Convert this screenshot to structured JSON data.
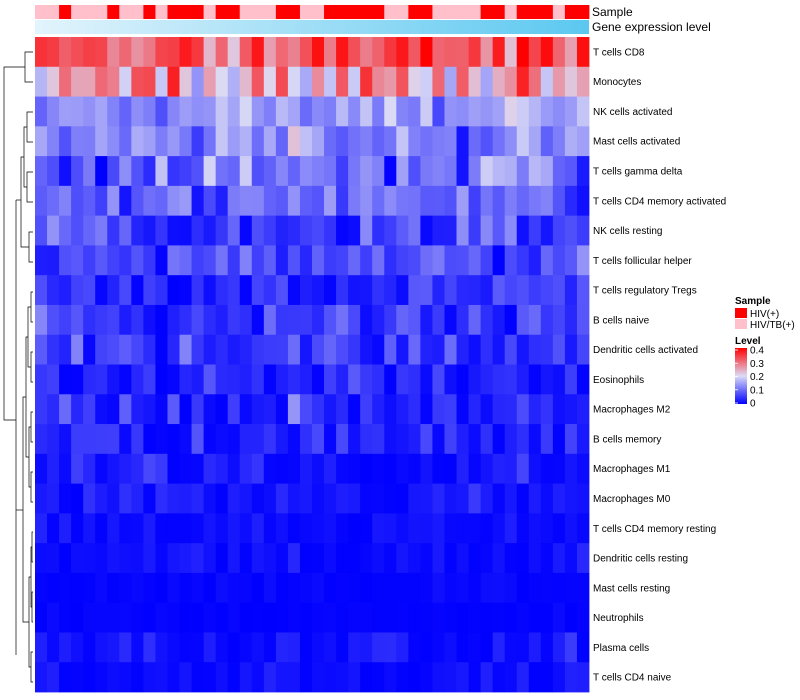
{
  "chart_data": {
    "type": "heatmap",
    "title": "",
    "annotation_rows": [
      {
        "name": "Sample",
        "label": "Sample"
      },
      {
        "name": "Gene expression level",
        "label": "Gene expression level"
      }
    ],
    "rows": [
      "T cells CD8",
      "Monocytes",
      "NK cells activated",
      "Mast cells activated",
      "T cells gamma delta",
      "T cells CD4 memory activated",
      "NK cells resting",
      "T cells follicular helper",
      "T cells regulatory  Tregs",
      "B cells naive",
      "Dendritic cells activated",
      "Eosinophils",
      "Macrophages M2",
      "B cells memory",
      "Macrophages M1",
      "Macrophages M0",
      "T cells CD4 memory resting",
      "Dendritic cells resting",
      "Mast cells resting",
      "Neutrophils",
      "Plasma cells",
      "T cells CD4 naive"
    ],
    "n_columns": 46,
    "sample_groups": [
      1,
      1,
      0,
      1,
      1,
      1,
      0,
      1,
      1,
      0,
      1,
      0,
      0,
      0,
      1,
      0,
      0,
      1,
      1,
      1,
      0,
      0,
      1,
      1,
      0,
      0,
      0,
      0,
      0,
      1,
      1,
      0,
      0,
      1,
      1,
      1,
      1,
      0,
      0,
      1,
      0,
      0,
      0,
      1,
      0,
      0
    ],
    "value_range": [
      0,
      0.4
    ],
    "color_scale": {
      "low": "#0000ff",
      "mid": "#dcdcf5",
      "high": "#ff0000",
      "midpoint": 0.2
    },
    "legends": {
      "sample": {
        "title": "Sample",
        "entries": [
          {
            "label": "HIV(+)",
            "color": "#ff0000"
          },
          {
            "label": "HIV/TB(+)",
            "color": "#ffc0cb"
          }
        ]
      },
      "level": {
        "title": "Level",
        "ticks": [
          {
            "label": "0.4",
            "value": 0.4
          },
          {
            "label": "0.3",
            "value": 0.3
          },
          {
            "label": "0.2",
            "value": 0.2
          },
          {
            "label": "0.1",
            "value": 0.1
          },
          {
            "label": "0",
            "value": 0
          }
        ]
      }
    },
    "row_profiles": [
      {
        "mean": 0.33,
        "sd": 0.05
      },
      {
        "mean": 0.24,
        "sd": 0.07
      },
      {
        "mean": 0.14,
        "sd": 0.03
      },
      {
        "mean": 0.13,
        "sd": 0.04
      },
      {
        "mean": 0.09,
        "sd": 0.05
      },
      {
        "mean": 0.09,
        "sd": 0.04
      },
      {
        "mean": 0.06,
        "sd": 0.04
      },
      {
        "mean": 0.07,
        "sd": 0.03
      },
      {
        "mean": 0.04,
        "sd": 0.03
      },
      {
        "mean": 0.05,
        "sd": 0.03
      },
      {
        "mean": 0.05,
        "sd": 0.03
      },
      {
        "mean": 0.03,
        "sd": 0.03
      },
      {
        "mean": 0.03,
        "sd": 0.03
      },
      {
        "mean": 0.025,
        "sd": 0.025
      },
      {
        "mean": 0.015,
        "sd": 0.02
      },
      {
        "mean": 0.015,
        "sd": 0.02
      },
      {
        "mean": 0.008,
        "sd": 0.012
      },
      {
        "mean": 0.006,
        "sd": 0.012
      },
      {
        "mean": 0.003,
        "sd": 0.006
      },
      {
        "mean": 0.002,
        "sd": 0.004
      },
      {
        "mean": 0.012,
        "sd": 0.018
      },
      {
        "mean": 0.008,
        "sd": 0.012
      }
    ],
    "expression_gradient": {
      "start": "#e3f4fc",
      "end": "#5bc8f0"
    }
  }
}
